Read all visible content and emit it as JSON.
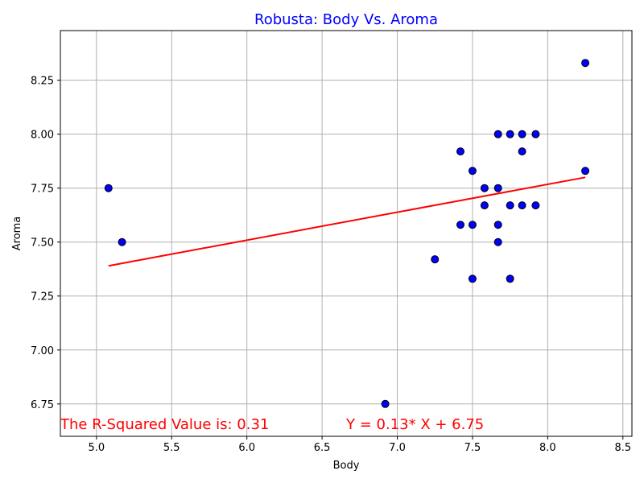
{
  "chart_data": {
    "type": "scatter",
    "title": "Robusta: Body Vs. Aroma",
    "xlabel": "Body",
    "ylabel": "Aroma",
    "xlim": [
      4.76,
      8.56
    ],
    "ylim": [
      6.6,
      8.48
    ],
    "xticks": [
      5.0,
      5.5,
      6.0,
      6.5,
      7.0,
      7.5,
      8.0,
      8.5
    ],
    "xtick_labels": [
      "5.0",
      "5.5",
      "6.0",
      "6.5",
      "7.0",
      "7.5",
      "8.0",
      "8.5"
    ],
    "yticks": [
      6.75,
      7.0,
      7.25,
      7.5,
      7.75,
      8.0,
      8.25
    ],
    "ytick_labels": [
      "6.75",
      "7.00",
      "7.25",
      "7.50",
      "7.75",
      "8.00",
      "8.25"
    ],
    "grid": true,
    "point_color": "#0000ff",
    "point_edge_color": "#000000",
    "line_color": "#ff0000",
    "title_color": "#0000ff",
    "annotation_color": "#ff0000",
    "points": [
      {
        "x": 5.08,
        "y": 7.75
      },
      {
        "x": 5.17,
        "y": 7.5
      },
      {
        "x": 6.92,
        "y": 6.75
      },
      {
        "x": 7.25,
        "y": 7.42
      },
      {
        "x": 7.42,
        "y": 7.92
      },
      {
        "x": 7.42,
        "y": 7.58
      },
      {
        "x": 7.5,
        "y": 7.83
      },
      {
        "x": 7.5,
        "y": 7.58
      },
      {
        "x": 7.5,
        "y": 7.33
      },
      {
        "x": 7.58,
        "y": 7.75
      },
      {
        "x": 7.58,
        "y": 7.67
      },
      {
        "x": 7.67,
        "y": 8.0
      },
      {
        "x": 7.67,
        "y": 7.75
      },
      {
        "x": 7.67,
        "y": 7.58
      },
      {
        "x": 7.67,
        "y": 7.5
      },
      {
        "x": 7.75,
        "y": 8.0
      },
      {
        "x": 7.75,
        "y": 7.67
      },
      {
        "x": 7.75,
        "y": 7.33
      },
      {
        "x": 7.83,
        "y": 8.0
      },
      {
        "x": 7.83,
        "y": 7.92
      },
      {
        "x": 7.83,
        "y": 7.67
      },
      {
        "x": 7.92,
        "y": 8.0
      },
      {
        "x": 7.92,
        "y": 7.67
      },
      {
        "x": 8.25,
        "y": 8.33
      },
      {
        "x": 8.25,
        "y": 7.83
      }
    ],
    "regression": {
      "slope": 0.13,
      "intercept": 6.75,
      "x_range": [
        5.08,
        8.25
      ],
      "y_range": [
        7.39,
        7.8
      ]
    },
    "annotations": {
      "r_squared": "The R-Squared Value is: 0.31",
      "equation": "Y = 0.13* X + 6.75"
    }
  }
}
